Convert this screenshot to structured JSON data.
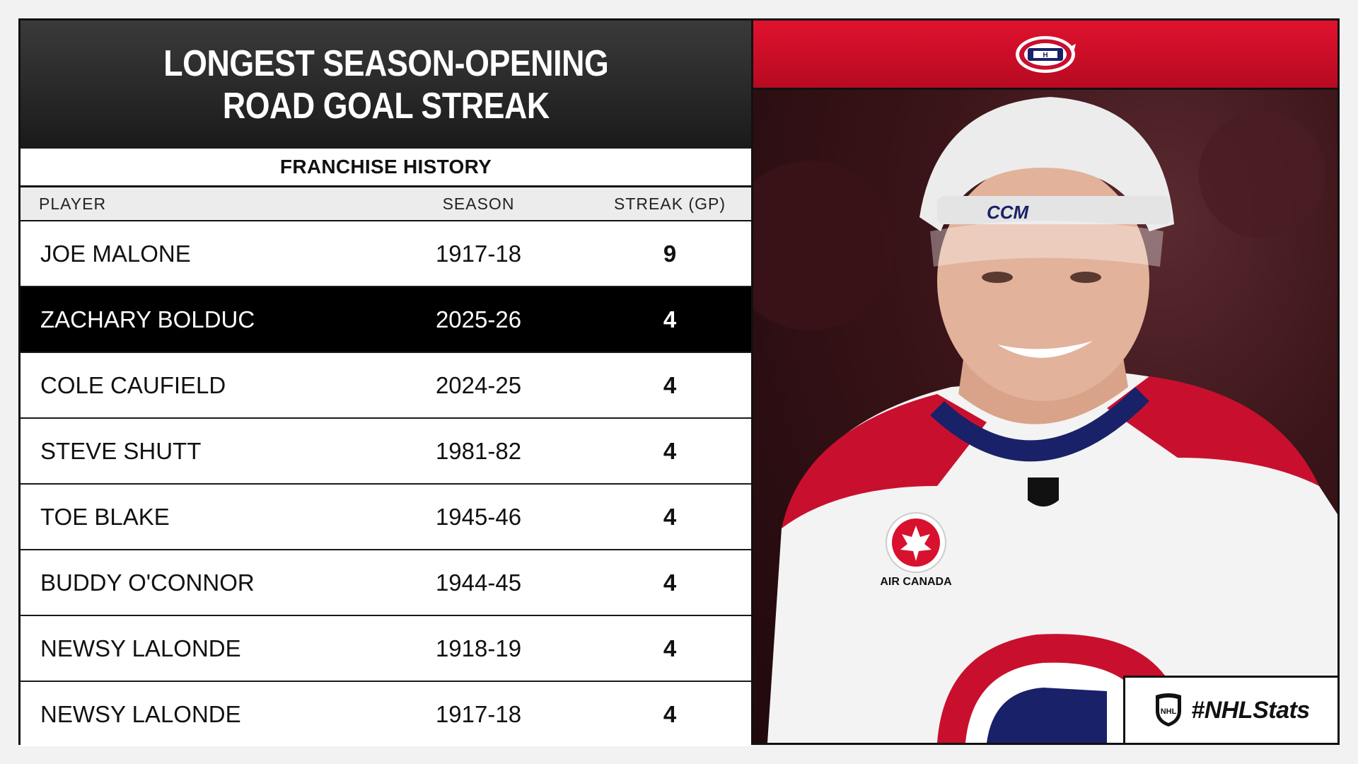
{
  "header": {
    "title_line1": "LONGEST SEASON-OPENING",
    "title_line2": "ROAD GOAL STREAK"
  },
  "subheader": "FRANCHISE HISTORY",
  "columns": {
    "player": "PLAYER",
    "season": "SEASON",
    "streak": "STREAK (GP)"
  },
  "rows": [
    {
      "player": "JOE MALONE",
      "season": "1917-18",
      "streak": "9"
    },
    {
      "player": "ZACHARY BOLDUC",
      "season": "2025-26",
      "streak": "4"
    },
    {
      "player": "COLE CAUFIELD",
      "season": "2024-25",
      "streak": "4"
    },
    {
      "player": "STEVE SHUTT",
      "season": "1981-82",
      "streak": "4"
    },
    {
      "player": "TOE BLAKE",
      "season": "1945-46",
      "streak": "4"
    },
    {
      "player": "BUDDY O'CONNOR",
      "season": "1944-45",
      "streak": "4"
    },
    {
      "player": "NEWSY LALONDE",
      "season": "1918-19",
      "streak": "4"
    },
    {
      "player": "NEWSY LALONDE",
      "season": "1917-18",
      "streak": "4"
    }
  ],
  "badge": {
    "text": "#NHLStats",
    "icon": "nhl-shield-icon"
  },
  "team_logo": "canadiens-logo-icon",
  "photo_jersey_patch": "AIR CANADA",
  "colors": {
    "accent_red": "#c8102e",
    "navy": "#192168",
    "header_dark": "#1a1a1a"
  }
}
